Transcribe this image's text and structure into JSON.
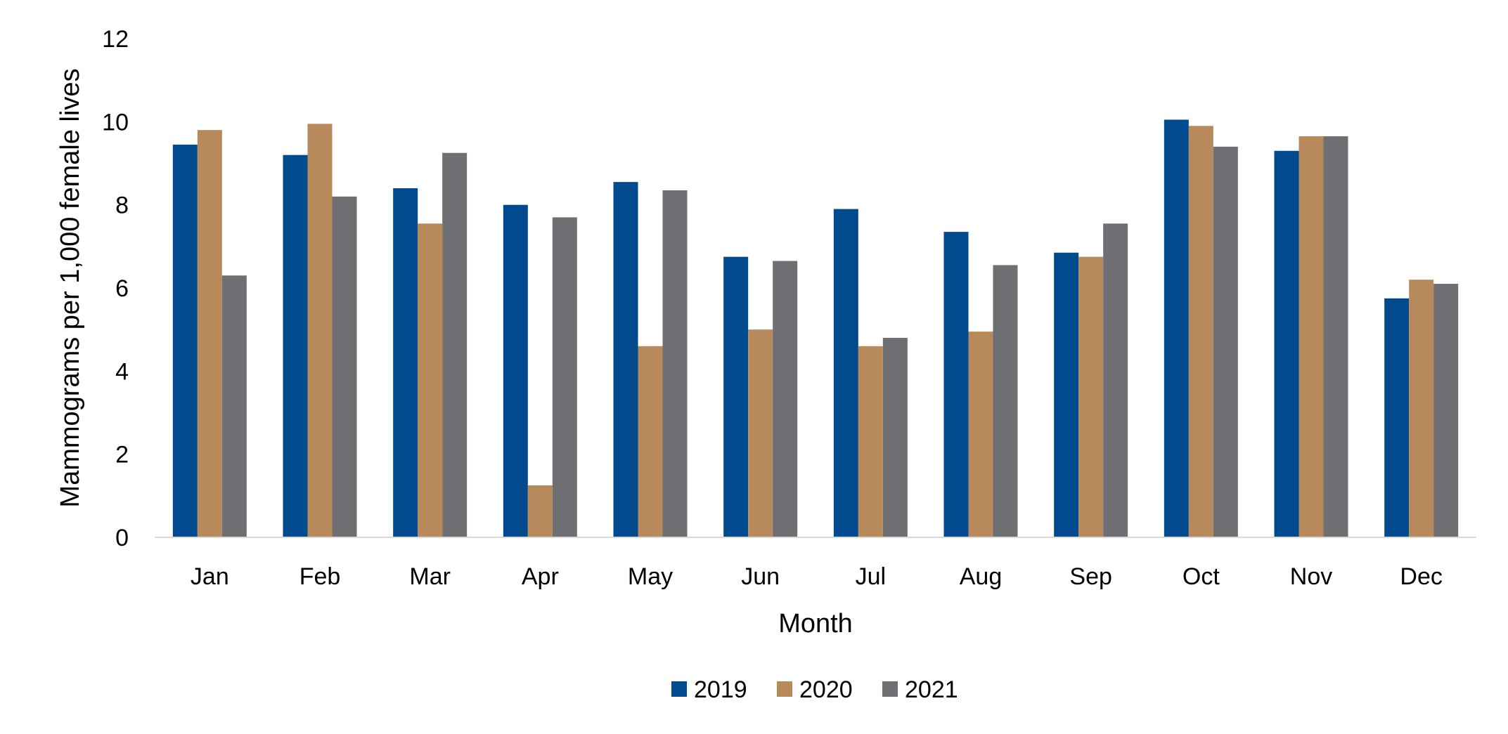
{
  "chart_data": {
    "type": "bar",
    "title": "",
    "xlabel": "Month",
    "ylabel": "Mammograms per 1,000 female lives",
    "ylim": [
      0,
      12
    ],
    "yticks": [
      0,
      2,
      4,
      6,
      8,
      10,
      12
    ],
    "grid": false,
    "legend_position": "bottom",
    "categories": [
      "Jan",
      "Feb",
      "Mar",
      "Apr",
      "May",
      "Jun",
      "Jul",
      "Aug",
      "Sep",
      "Oct",
      "Nov",
      "Dec"
    ],
    "series": [
      {
        "name": "2019",
        "color": "#004A8D",
        "values": [
          9.45,
          9.2,
          8.4,
          8.0,
          8.55,
          6.75,
          7.9,
          7.35,
          6.85,
          10.05,
          9.3,
          5.75
        ]
      },
      {
        "name": "2020",
        "color": "#B8895A",
        "values": [
          9.8,
          9.95,
          7.55,
          1.25,
          4.6,
          5.0,
          4.6,
          4.95,
          6.75,
          9.9,
          9.65,
          6.2
        ]
      },
      {
        "name": "2021",
        "color": "#6E6F73",
        "values": [
          6.3,
          8.2,
          9.25,
          7.7,
          8.35,
          6.65,
          4.8,
          6.55,
          7.55,
          9.4,
          9.65,
          6.1
        ]
      }
    ]
  }
}
